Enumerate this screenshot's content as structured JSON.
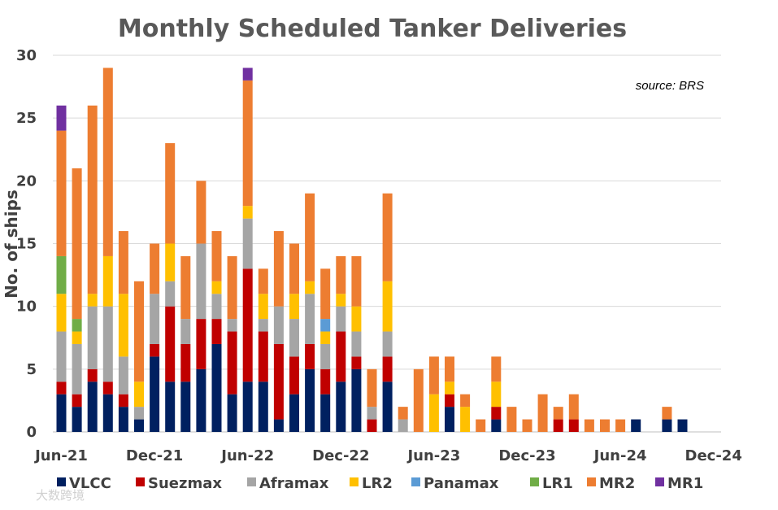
{
  "watermark": "大数跨境",
  "chart_data": {
    "type": "bar",
    "stacked": true,
    "title": "Monthly Scheduled Tanker Deliveries",
    "source": "source: BRS",
    "xlabel": "",
    "ylabel": "No. of ships",
    "ylim": [
      0,
      30
    ],
    "yticks": [
      0,
      5,
      10,
      15,
      20,
      25,
      30
    ],
    "xticks": [
      "Jun-21",
      "Dec-21",
      "Jun-22",
      "Dec-22",
      "Jun-23",
      "Dec-23",
      "Jun-24",
      "Dec-24"
    ],
    "legend_position": "bottom",
    "categories": [
      "Jun-21",
      "Jul-21",
      "Aug-21",
      "Sep-21",
      "Oct-21",
      "Nov-21",
      "Dec-21",
      "Jan-22",
      "Feb-22",
      "Mar-22",
      "Apr-22",
      "May-22",
      "Jun-22",
      "Jul-22",
      "Aug-22",
      "Sep-22",
      "Oct-22",
      "Nov-22",
      "Dec-22",
      "Jan-23",
      "Feb-23",
      "Mar-23",
      "Apr-23",
      "May-23",
      "Jun-23",
      "Jul-23",
      "Aug-23",
      "Sep-23",
      "Oct-23",
      "Nov-23",
      "Dec-23",
      "Jan-24",
      "Feb-24",
      "Mar-24",
      "Apr-24",
      "May-24",
      "Jun-24",
      "Jul-24",
      "Aug-24",
      "Sep-24",
      "Oct-24",
      "Nov-24",
      "Dec-24"
    ],
    "series": [
      {
        "name": "VLCC",
        "color": "#002060",
        "values": [
          3,
          2,
          4,
          3,
          2,
          1,
          6,
          4,
          4,
          5,
          7,
          3,
          4,
          4,
          1,
          3,
          5,
          3,
          4,
          5,
          0,
          4,
          0,
          0,
          0,
          2,
          0,
          0,
          1,
          0,
          0,
          0,
          0,
          0,
          0,
          0,
          0,
          1,
          0,
          1,
          1,
          0,
          0
        ]
      },
      {
        "name": "Suezmax",
        "color": "#C00000",
        "values": [
          1,
          1,
          1,
          1,
          1,
          0,
          1,
          6,
          3,
          4,
          2,
          5,
          9,
          4,
          6,
          3,
          2,
          2,
          4,
          1,
          1,
          2,
          0,
          0,
          0,
          1,
          0,
          0,
          1,
          0,
          0,
          0,
          1,
          1,
          0,
          0,
          0,
          0,
          0,
          0,
          0,
          0,
          0
        ]
      },
      {
        "name": "Aframax",
        "color": "#A5A5A5",
        "values": [
          4,
          4,
          5,
          6,
          3,
          1,
          4,
          2,
          2,
          6,
          2,
          1,
          4,
          1,
          3,
          3,
          4,
          2,
          2,
          2,
          1,
          2,
          1,
          0,
          0,
          0,
          0,
          0,
          0,
          0,
          0,
          0,
          0,
          0,
          0,
          0,
          0,
          0,
          0,
          0,
          0,
          0,
          0
        ]
      },
      {
        "name": "LR2",
        "color": "#FFC000",
        "values": [
          3,
          1,
          1,
          4,
          5,
          2,
          0,
          3,
          0,
          0,
          1,
          0,
          1,
          2,
          0,
          2,
          1,
          1,
          1,
          2,
          0,
          4,
          0,
          0,
          3,
          1,
          2,
          0,
          2,
          0,
          0,
          0,
          0,
          0,
          0,
          0,
          0,
          0,
          0,
          0,
          0,
          0,
          0
        ]
      },
      {
        "name": "Panamax",
        "color": "#5B9BD5",
        "values": [
          0,
          0,
          0,
          0,
          0,
          0,
          0,
          0,
          0,
          0,
          0,
          0,
          0,
          0,
          0,
          0,
          0,
          1,
          0,
          0,
          0,
          0,
          0,
          0,
          0,
          0,
          0,
          0,
          0,
          0,
          0,
          0,
          0,
          0,
          0,
          0,
          0,
          0,
          0,
          0,
          0,
          0,
          0
        ]
      },
      {
        "name": "LR1",
        "color": "#70AD47",
        "values": [
          3,
          1,
          0,
          0,
          0,
          0,
          0,
          0,
          0,
          0,
          0,
          0,
          0,
          0,
          0,
          0,
          0,
          0,
          0,
          0,
          0,
          0,
          0,
          0,
          0,
          0,
          0,
          0,
          0,
          0,
          0,
          0,
          0,
          0,
          0,
          0,
          0,
          0,
          0,
          0,
          0,
          0,
          0
        ]
      },
      {
        "name": "MR2",
        "color": "#ED7D31",
        "values": [
          10,
          12,
          15,
          15,
          5,
          8,
          4,
          8,
          5,
          5,
          4,
          5,
          10,
          2,
          6,
          4,
          7,
          4,
          3,
          4,
          3,
          7,
          1,
          5,
          3,
          2,
          1,
          1,
          2,
          2,
          1,
          3,
          1,
          2,
          1,
          1,
          1,
          0,
          0,
          1,
          0,
          0,
          0
        ]
      },
      {
        "name": "MR1",
        "color": "#7030A0",
        "values": [
          2,
          0,
          0,
          0,
          0,
          0,
          0,
          0,
          0,
          0,
          0,
          0,
          1,
          0,
          0,
          0,
          0,
          0,
          0,
          0,
          0,
          0,
          0,
          0,
          0,
          0,
          0,
          0,
          0,
          0,
          0,
          0,
          0,
          0,
          0,
          0,
          0,
          0,
          0,
          0,
          0,
          0,
          0
        ]
      }
    ]
  }
}
